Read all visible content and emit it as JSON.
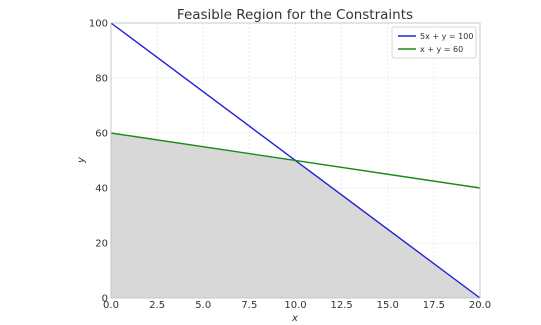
{
  "chart_data": {
    "type": "line",
    "title": "Feasible Region for the Constraints",
    "xlabel": "x",
    "ylabel": "y",
    "xlim": [
      0,
      20
    ],
    "ylim": [
      0,
      100
    ],
    "x_ticks": [
      0,
      2.5,
      5,
      7.5,
      10,
      12.5,
      15,
      17.5,
      20
    ],
    "x_tick_labels": [
      "0.0",
      "2.5",
      "5.0",
      "7.5",
      "10.0",
      "12.5",
      "15.0",
      "17.5",
      "20.0"
    ],
    "y_ticks": [
      0,
      20,
      40,
      60,
      80,
      100
    ],
    "y_tick_labels": [
      "0",
      "20",
      "40",
      "60",
      "80",
      "100"
    ],
    "grid": true,
    "legend_position": "top-right",
    "series": [
      {
        "name": "5x + y = 100",
        "color": "#2020d8",
        "x": [
          0,
          20
        ],
        "y": [
          100,
          0
        ]
      },
      {
        "name": "x + y = 60",
        "color": "#1a8a1a",
        "x": [
          0,
          20
        ],
        "y": [
          60,
          40
        ]
      }
    ],
    "shaded_region": {
      "color": "#d8d8d8",
      "x": [
        0,
        10,
        20,
        20,
        0
      ],
      "y": [
        60,
        50,
        0,
        0,
        0
      ]
    }
  }
}
